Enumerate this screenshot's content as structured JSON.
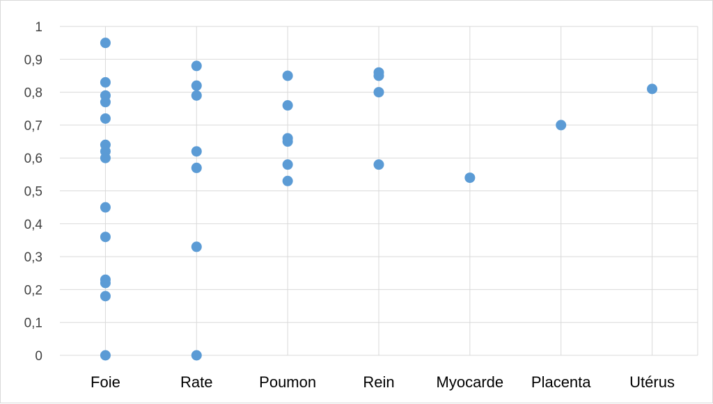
{
  "chart_data": {
    "type": "scatter",
    "title": "",
    "xlabel": "",
    "ylabel": "",
    "categories": [
      "Foie",
      "Rate",
      "Poumon",
      "Rein",
      "Myocarde",
      "Placenta",
      "Utérus"
    ],
    "ylim": [
      0,
      1
    ],
    "yticks": [
      0,
      0.1,
      0.2,
      0.3,
      0.4,
      0.5,
      0.6,
      0.7,
      0.8,
      0.9,
      1
    ],
    "ytick_labels": [
      "0",
      "0,1",
      "0,2",
      "0,3",
      "0,4",
      "0,5",
      "0,6",
      "0,7",
      "0,8",
      "0,9",
      "1"
    ],
    "grid": true,
    "legend": "none",
    "marker_color": "#5b9bd5",
    "grid_color": "#d9d9d9",
    "series": [
      {
        "values": [
          [
            0.95,
            0.83,
            0.79,
            0.77,
            0.72,
            0.64,
            0.62,
            0.6,
            0.45,
            0.36,
            0.23,
            0.22,
            0.18,
            0.0
          ],
          [
            0.88,
            0.82,
            0.79,
            0.62,
            0.57,
            0.33,
            0.0
          ],
          [
            0.85,
            0.76,
            0.66,
            0.65,
            0.58,
            0.53
          ],
          [
            0.86,
            0.85,
            0.8,
            0.58
          ],
          [
            0.54
          ],
          [
            0.7
          ],
          [
            0.81
          ]
        ]
      }
    ]
  }
}
